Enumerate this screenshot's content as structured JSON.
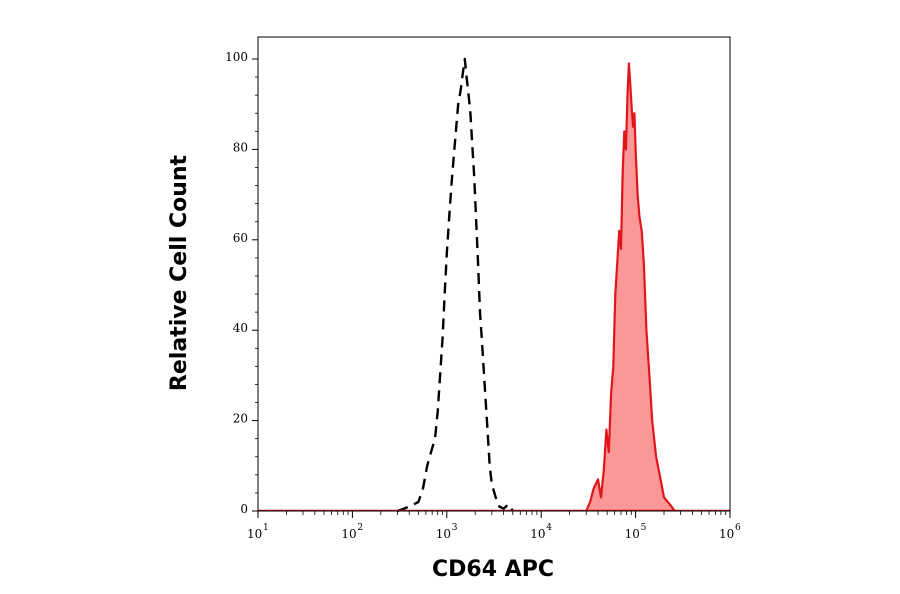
{
  "chart_data": {
    "type": "area",
    "xlabel": "CD64 APC",
    "ylabel": "Relative Cell Count",
    "x_scale": "log",
    "xlim": [
      10,
      1000000
    ],
    "ylim": [
      0,
      100
    ],
    "x_ticks": [
      {
        "base": "10",
        "exp": "1",
        "value": 10
      },
      {
        "base": "10",
        "exp": "2",
        "value": 100
      },
      {
        "base": "10",
        "exp": "3",
        "value": 1000
      },
      {
        "base": "10",
        "exp": "4",
        "value": 10000
      },
      {
        "base": "10",
        "exp": "5",
        "value": 100000
      },
      {
        "base": "10",
        "exp": "6",
        "value": 1000000
      }
    ],
    "y_ticks": [
      "0",
      "20",
      "40",
      "60",
      "80",
      "100"
    ],
    "grid": false,
    "legend": "none",
    "series": [
      {
        "style": "dashed-outline",
        "color": "#000000",
        "x": [
          300,
          350,
          400,
          500,
          560,
          620,
          680,
          750,
          800,
          850,
          900,
          950,
          1000,
          1060,
          1120,
          1180,
          1250,
          1320,
          1400,
          1480,
          1550,
          1620,
          1700,
          1780,
          1850,
          1950,
          2050,
          2150,
          2250,
          2400,
          2550,
          2700,
          2850,
          3000,
          3300,
          3600,
          4000,
          4500,
          5000
        ],
        "y": [
          0,
          0.5,
          1,
          2,
          5,
          10,
          13,
          16,
          22,
          30,
          38,
          48,
          57,
          65,
          72,
          78,
          84,
          90,
          93,
          97,
          100,
          96,
          92,
          88,
          82,
          74,
          64,
          54,
          44,
          35,
          26,
          18,
          10,
          6,
          3,
          1,
          0.5,
          1.5,
          0
        ]
      },
      {
        "style": "filled",
        "color": "#e0161a",
        "fill": "#fa9797",
        "x": [
          30000,
          33000,
          36000,
          40000,
          43000,
          46000,
          49000,
          52000,
          55000,
          58000,
          61000,
          64000,
          67000,
          70000,
          73000,
          76000,
          79000,
          82000,
          85000,
          88000,
          91000,
          94000,
          97000,
          100000,
          105000,
          110000,
          116000,
          122000,
          130000,
          140000,
          150000,
          165000,
          180000,
          200000,
          230000,
          260000
        ],
        "y": [
          0,
          2,
          5,
          7,
          3,
          9,
          18,
          13,
          26,
          32,
          48,
          55,
          62,
          58,
          75,
          84,
          80,
          92,
          99,
          94,
          89,
          85,
          88,
          80,
          70,
          65,
          62,
          55,
          40,
          30,
          20,
          12,
          8,
          3,
          1.5,
          0
        ]
      }
    ]
  }
}
